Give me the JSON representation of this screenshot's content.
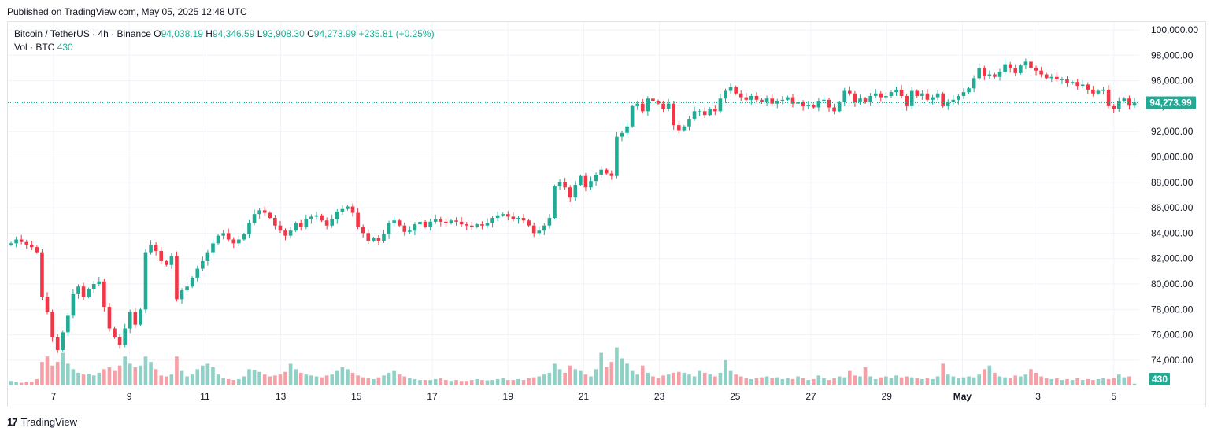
{
  "published_text": "Published on TradingView.com, May 05, 2025 12:48 UTC",
  "footer_brand": "TradingView",
  "legend": {
    "symbol": "Bitcoin / TetherUS · 4h · Binance",
    "o_label": "O",
    "o_value": "94,038.19",
    "h_label": "H",
    "h_value": "94,346.59",
    "l_label": "L",
    "l_value": "93,908.30",
    "c_label": "C",
    "c_value": "94,273.99",
    "change": "+235.81 (+0.25%)",
    "vol_label": "Vol · BTC",
    "vol_value": "430"
  },
  "colors": {
    "up": "#22ab94",
    "down": "#f23645",
    "vol_up": "#8fd1c6",
    "vol_down": "#f5a0a6",
    "grid": "#f0f3fa",
    "last_price": "#22ab94"
  },
  "chart_data": {
    "type": "candlestick",
    "interval": "4h",
    "x_tick_labels": [
      "7",
      "9",
      "11",
      "13",
      "15",
      "17",
      "19",
      "21",
      "23",
      "25",
      "27",
      "29",
      "May",
      "3",
      "5"
    ],
    "y_tick_labels": [
      "100,000.00",
      "98,000.00",
      "96,000.00",
      "94,000.00",
      "92,000.00",
      "90,000.00",
      "88,000.00",
      "86,000.00",
      "84,000.00",
      "82,000.00",
      "80,000.00",
      "78,000.00",
      "76,000.00",
      "74,000.00"
    ],
    "ylim": [
      72500,
      101000
    ],
    "last_price": 94273.99,
    "last_price_label": "94,273.99",
    "last_volume_label": "430",
    "close": [
      83200,
      83500,
      83300,
      83100,
      82900,
      82500,
      79000,
      77800,
      75800,
      74800,
      76200,
      77500,
      79200,
      79800,
      79000,
      79600,
      80000,
      80200,
      78200,
      76500,
      75800,
      75200,
      76500,
      77800,
      76800,
      78000,
      82500,
      83100,
      82600,
      81800,
      81500,
      82200,
      78800,
      79500,
      79800,
      80500,
      81200,
      81800,
      82500,
      83200,
      83800,
      84000,
      83500,
      83200,
      83500,
      83900,
      84800,
      85500,
      85800,
      85600,
      85200,
      84600,
      84200,
      83800,
      84200,
      84800,
      84500,
      85100,
      85300,
      85400,
      85000,
      84600,
      85100,
      85700,
      85900,
      86100,
      85600,
      84500,
      84000,
      83400,
      83600,
      83400,
      83900,
      84800,
      85000,
      84600,
      84100,
      84200,
      84700,
      84900,
      84500,
      84900,
      85100,
      84900,
      84800,
      85000,
      84900,
      84700,
      84600,
      84500,
      84700,
      84600,
      84800,
      85200,
      85400,
      85500,
      85300,
      85100,
      85200,
      85000,
      84600,
      84000,
      84200,
      84600,
      85200,
      87700,
      88000,
      87600,
      86800,
      87800,
      88500,
      87600,
      88100,
      88600,
      89000,
      88700,
      88500,
      91600,
      91900,
      92400,
      94000,
      94200,
      93600,
      94600,
      94400,
      94200,
      93800,
      94200,
      92500,
      92100,
      92400,
      93000,
      93600,
      93600,
      93300,
      93800,
      93600,
      94600,
      95200,
      95500,
      95000,
      94700,
      94500,
      94800,
      94500,
      94300,
      94600,
      94200,
      94400,
      94500,
      94700,
      94200,
      94300,
      94000,
      94100,
      93900,
      94400,
      94500,
      93900,
      93600,
      94300,
      95200,
      95000,
      94300,
      94600,
      94300,
      94800,
      95000,
      94700,
      94800,
      95100,
      95300,
      94800,
      94000,
      95200,
      94800,
      95000,
      94500,
      94700,
      95000,
      94000,
      94300,
      94500,
      94800,
      95100,
      95400,
      96200,
      97000,
      96400,
      96500,
      96300,
      96700,
      97300,
      97000,
      96600,
      97200,
      97500,
      97000,
      96800,
      96500,
      96200,
      96300,
      96100,
      96100,
      95800,
      95900,
      95600,
      95700,
      95300,
      95000,
      95200,
      95300,
      94000,
      93800,
      94400,
      94600,
      94038,
      94274
    ],
    "volume_ratio": [
      0.25,
      0.2,
      0.15,
      0.18,
      0.22,
      0.35,
      1.3,
      1.6,
      1.1,
      1.3,
      1.8,
      1.2,
      0.9,
      0.7,
      0.6,
      0.65,
      0.55,
      0.7,
      0.9,
      1.0,
      0.8,
      1.1,
      1.6,
      1.2,
      1.0,
      1.1,
      1.6,
      1.3,
      0.9,
      0.55,
      0.5,
      0.6,
      1.6,
      0.8,
      0.5,
      0.6,
      0.9,
      1.1,
      1.2,
      1.0,
      0.6,
      0.4,
      0.35,
      0.3,
      0.35,
      0.5,
      0.9,
      0.85,
      0.75,
      0.6,
      0.5,
      0.55,
      0.6,
      0.75,
      1.2,
      0.9,
      0.7,
      0.6,
      0.55,
      0.5,
      0.45,
      0.55,
      0.6,
      0.8,
      1.0,
      0.9,
      0.7,
      0.55,
      0.45,
      0.4,
      0.35,
      0.45,
      0.55,
      0.7,
      0.8,
      0.6,
      0.5,
      0.4,
      0.35,
      0.3,
      0.3,
      0.3,
      0.35,
      0.4,
      0.3,
      0.25,
      0.3,
      0.25,
      0.25,
      0.3,
      0.35,
      0.3,
      0.28,
      0.3,
      0.35,
      0.4,
      0.3,
      0.3,
      0.35,
      0.3,
      0.4,
      0.45,
      0.5,
      0.6,
      0.7,
      1.2,
      0.9,
      0.7,
      1.1,
      0.9,
      0.8,
      0.6,
      0.5,
      0.9,
      1.8,
      1.0,
      1.3,
      2.1,
      1.5,
      1.2,
      0.8,
      0.6,
      1.1,
      0.7,
      0.5,
      0.4,
      0.55,
      0.6,
      0.7,
      0.75,
      0.7,
      0.6,
      0.5,
      0.8,
      0.7,
      0.6,
      0.5,
      0.7,
      1.4,
      0.8,
      0.6,
      0.5,
      0.4,
      0.35,
      0.4,
      0.45,
      0.5,
      0.4,
      0.45,
      0.35,
      0.4,
      0.35,
      0.5,
      0.4,
      0.3,
      0.35,
      0.55,
      0.4,
      0.3,
      0.4,
      0.5,
      0.45,
      0.8,
      0.55,
      0.5,
      1.0,
      0.5,
      0.35,
      0.45,
      0.5,
      0.4,
      0.55,
      0.45,
      0.5,
      0.45,
      0.4,
      0.35,
      0.4,
      0.35,
      0.5,
      1.2,
      0.6,
      0.5,
      0.4,
      0.45,
      0.5,
      0.45,
      0.6,
      0.9,
      1.1,
      0.7,
      0.5,
      0.45,
      0.4,
      0.55,
      0.5,
      0.6,
      0.9,
      0.7,
      0.5,
      0.4,
      0.35,
      0.4,
      0.3,
      0.35,
      0.3,
      0.4,
      0.3,
      0.35,
      0.3,
      0.35,
      0.4,
      0.35,
      0.4,
      0.6,
      0.45,
      0.5,
      0.1
    ]
  }
}
